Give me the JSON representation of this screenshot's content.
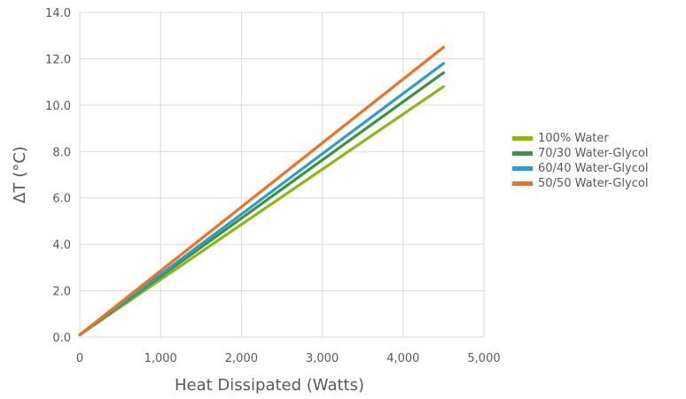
{
  "chart_data": {
    "type": "line",
    "xlabel": "Heat Dissipated (Watts)",
    "ylabel": "ΔT (°C)",
    "xlim": [
      0,
      5000
    ],
    "ylim": [
      0,
      14
    ],
    "x_ticks": [
      "0",
      "1,000",
      "2,000",
      "3,000",
      "4,000",
      "5,000"
    ],
    "y_ticks": [
      "0.0",
      "2.0",
      "4.0",
      "6.0",
      "8.0",
      "10.0",
      "12.0",
      "14.0"
    ],
    "grid": true,
    "legend_position": "right",
    "series": [
      {
        "name": "100% Water",
        "color": "#8DB814",
        "x": [
          0,
          4500
        ],
        "y": [
          0.1,
          10.8
        ]
      },
      {
        "name": "70/30 Water-Glycol",
        "color": "#3A9440",
        "x": [
          0,
          4500
        ],
        "y": [
          0.1,
          11.4
        ]
      },
      {
        "name": "60/40 Water-Glycol",
        "color": "#2D9DD1",
        "x": [
          0,
          4500
        ],
        "y": [
          0.1,
          11.8
        ]
      },
      {
        "name": "50/50 Water-Glycol",
        "color": "#F2711C",
        "x": [
          0,
          4500
        ],
        "y": [
          0.1,
          12.5
        ]
      }
    ]
  }
}
